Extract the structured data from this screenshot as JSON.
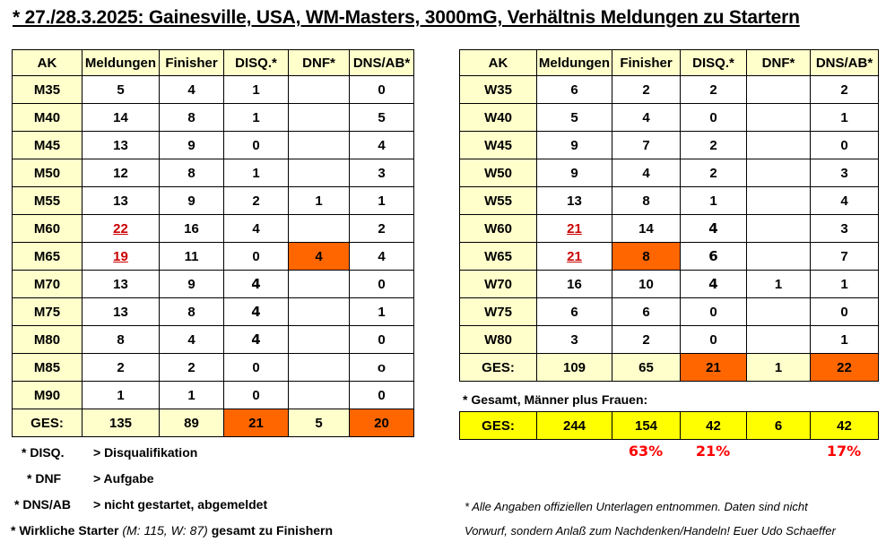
{
  "title": "* 27./28.3.2025: Gainesville, USA, WM-Masters, 3000mG, Verhältnis Meldungen zu Startern",
  "headers": [
    "AK",
    "Meldungen",
    "Finisher",
    "DISQ.*",
    "DNF*",
    "DNS/AB*"
  ],
  "men": {
    "rows": [
      {
        "ak": "M35",
        "mel": "5",
        "fin": "4",
        "disq": "1",
        "dnf": "",
        "dns": "0"
      },
      {
        "ak": "M40",
        "mel": "14",
        "fin": "8",
        "disq": "1",
        "dnf": "",
        "dns": "5"
      },
      {
        "ak": "M45",
        "mel": "13",
        "fin": "9",
        "disq": "0",
        "dnf": "",
        "dns": "4"
      },
      {
        "ak": "M50",
        "mel": "12",
        "fin": "8",
        "disq": "1",
        "dnf": "",
        "dns": "3"
      },
      {
        "ak": "M55",
        "mel": "13",
        "fin": "9",
        "disq": "2",
        "dnf": "1",
        "dns": "1"
      },
      {
        "ak": "M60",
        "mel": "22",
        "fin": "16",
        "disq": "4",
        "dnf": "",
        "dns": "2"
      },
      {
        "ak": "M65",
        "mel": "19",
        "fin": "11",
        "disq": "0",
        "dnf": "4",
        "dns": "4"
      },
      {
        "ak": "M70",
        "mel": "13",
        "fin": "9",
        "disq": "4",
        "dnf": "",
        "dns": "0"
      },
      {
        "ak": "M75",
        "mel": "13",
        "fin": "8",
        "disq": "4",
        "dnf": "",
        "dns": "1"
      },
      {
        "ak": "M80",
        "mel": "8",
        "fin": "4",
        "disq": "4",
        "dnf": "",
        "dns": "0"
      },
      {
        "ak": "M85",
        "mel": "2",
        "fin": "2",
        "disq": "0",
        "dnf": "",
        "dns": "o"
      },
      {
        "ak": "M90",
        "mel": "1",
        "fin": "1",
        "disq": "0",
        "dnf": "",
        "dns": "0"
      }
    ],
    "total": {
      "ak": "GES:",
      "mel": "135",
      "fin": "89",
      "disq": "21",
      "dnf": "5",
      "dns": "20"
    }
  },
  "women": {
    "rows": [
      {
        "ak": "W35",
        "mel": "6",
        "fin": "2",
        "disq": "2",
        "dnf": "",
        "dns": "2"
      },
      {
        "ak": "W40",
        "mel": "5",
        "fin": "4",
        "disq": "0",
        "dnf": "",
        "dns": "1"
      },
      {
        "ak": "W45",
        "mel": "9",
        "fin": "7",
        "disq": "2",
        "dnf": "",
        "dns": "0"
      },
      {
        "ak": "W50",
        "mel": "9",
        "fin": "4",
        "disq": "2",
        "dnf": "",
        "dns": "3"
      },
      {
        "ak": "W55",
        "mel": "13",
        "fin": "8",
        "disq": "1",
        "dnf": "",
        "dns": "4"
      },
      {
        "ak": "W60",
        "mel": "21",
        "fin": "14",
        "disq": "4",
        "dnf": "",
        "dns": "3"
      },
      {
        "ak": "W65",
        "mel": "21",
        "fin": "8",
        "disq": "6",
        "dnf": "",
        "dns": "7"
      },
      {
        "ak": "W70",
        "mel": "16",
        "fin": "10",
        "disq": "4",
        "dnf": "1",
        "dns": "1"
      },
      {
        "ak": "W75",
        "mel": "6",
        "fin": "6",
        "disq": "0",
        "dnf": "",
        "dns": "0"
      },
      {
        "ak": "W80",
        "mel": "3",
        "fin": "2",
        "disq": "0",
        "dnf": "",
        "dns": "1"
      }
    ],
    "total": {
      "ak": "GES:",
      "mel": "109",
      "fin": "65",
      "disq": "21",
      "dnf": "1",
      "dns": "22"
    }
  },
  "gesamt_label": "* Gesamt, Männer plus Frauen:",
  "gesamt": {
    "ak": "GES:",
    "mel": "244",
    "fin": "154",
    "disq": "42",
    "dnf": "6",
    "dns": "42"
  },
  "percentages": {
    "fin": "63%",
    "disq": "21%",
    "dns": "17%"
  },
  "legend": [
    {
      "key": "* DISQ.",
      "text": "> Disqualifikation"
    },
    {
      "key": "* DNF",
      "text": "> Aufgabe"
    },
    {
      "key": "* DNS/AB",
      "text": "> nicht gestartet, abgemeldet"
    }
  ],
  "starters": {
    "label": "* Wirkliche Starter",
    "detail": "(M: 115, W: 87)",
    "suffix": "gesamt zu Finishern"
  },
  "footnote": {
    "line1": "* Alle Angaben offiziellen Unterlagen entnommen. Daten sind nicht",
    "line2": "Vorwurf, sondern Anlaß zum Nachdenken/Handeln! Euer Udo Schaeffer"
  },
  "colors": {
    "cream": "#ffffcc",
    "yellow": "#ffff00",
    "orange": "#ff6600",
    "red": "#cc0000"
  }
}
